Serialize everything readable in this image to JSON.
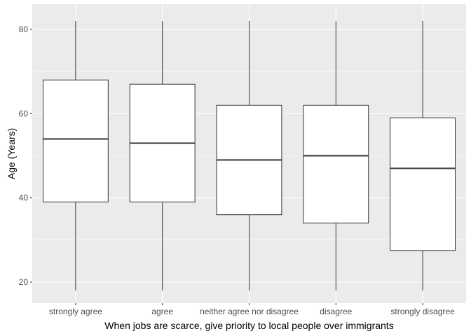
{
  "chart_data": {
    "type": "boxplot",
    "title": "",
    "xlabel": "When jobs are scarce, give priority to local people over immigrants",
    "ylabel": "Age (Years)",
    "ylim": [
      15,
      86
    ],
    "yticks": [
      20,
      40,
      60,
      80
    ],
    "grid": true,
    "legend": "none",
    "categories": [
      "strongly agree",
      "agree",
      "neither agree nor disagree",
      "disagree",
      "strongly disagree"
    ],
    "boxes": [
      {
        "category": "strongly agree",
        "whisker_low": 18,
        "q1": 39,
        "median": 54,
        "q3": 68,
        "whisker_high": 82
      },
      {
        "category": "agree",
        "whisker_low": 18,
        "q1": 39,
        "median": 53,
        "q3": 67,
        "whisker_high": 82
      },
      {
        "category": "neither agree nor disagree",
        "whisker_low": 18,
        "q1": 36,
        "median": 49,
        "q3": 62,
        "whisker_high": 82
      },
      {
        "category": "disagree",
        "whisker_low": 18,
        "q1": 34,
        "median": 50,
        "q3": 62,
        "whisker_high": 82
      },
      {
        "category": "strongly disagree",
        "whisker_low": 18,
        "q1": 27.5,
        "median": 47,
        "q3": 59,
        "whisker_high": 82
      }
    ],
    "colors": {
      "panel": "#ebebeb",
      "grid_major": "#ffffff",
      "box_fill": "#ffffff",
      "box_stroke": "#333333",
      "tick_text": "#4d4d4d",
      "title_text": "#000000"
    }
  }
}
